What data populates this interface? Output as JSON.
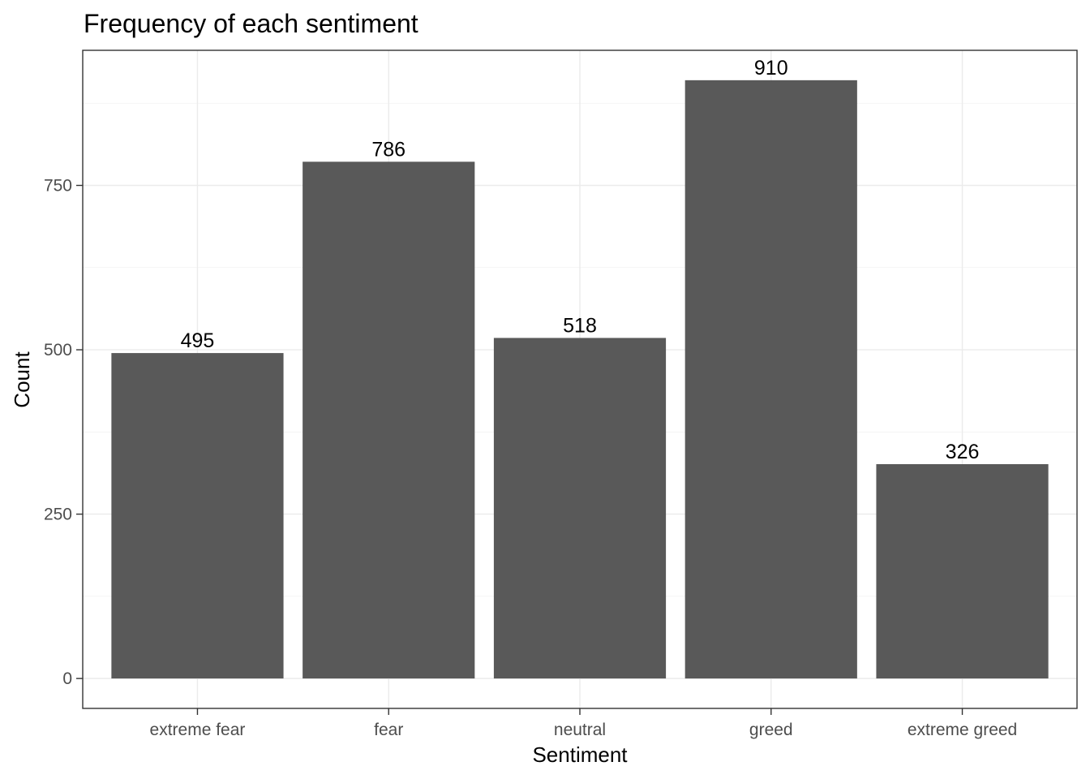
{
  "chart_data": {
    "type": "bar",
    "title": "Frequency of each sentiment",
    "xlabel": "Sentiment",
    "ylabel": "Count",
    "categories": [
      "extreme fear",
      "fear",
      "neutral",
      "greed",
      "extreme greed"
    ],
    "values": [
      495,
      786,
      518,
      910,
      326
    ],
    "data_labels": [
      "495",
      "786",
      "518",
      "910",
      "326"
    ],
    "yticks": [
      0,
      250,
      500,
      750
    ],
    "ytick_labels": [
      "0",
      "250",
      "500",
      "750"
    ],
    "ylim": [
      -45.5,
      955.5
    ],
    "grid": true,
    "legend": "none",
    "colors": {
      "bar": "#595959",
      "background": "#ffffff"
    }
  }
}
